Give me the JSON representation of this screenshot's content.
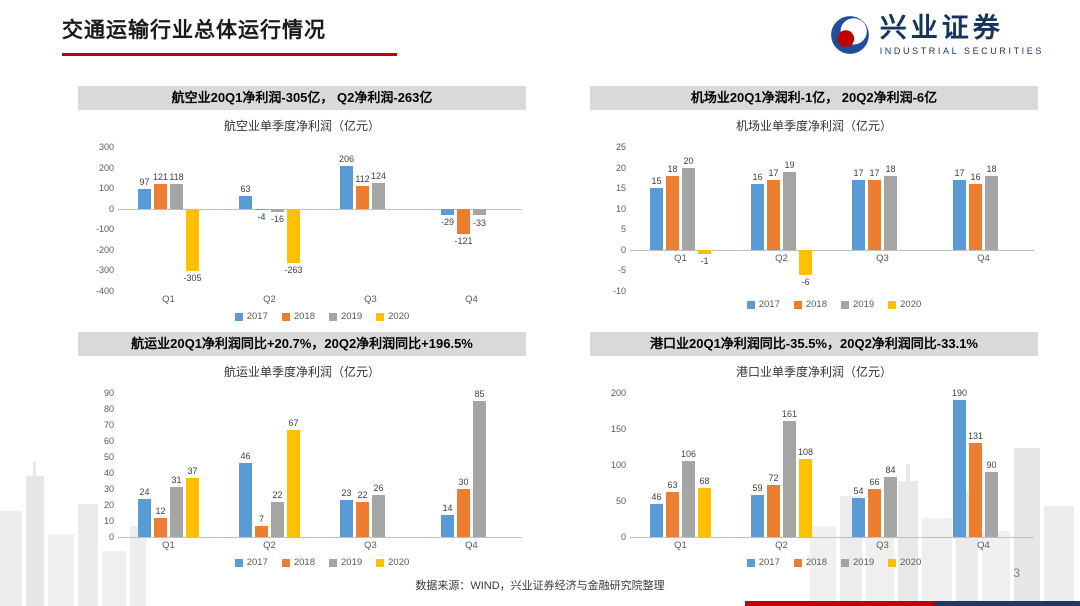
{
  "slide": {
    "title": "交通运输行业总体运行情况",
    "page_number": "3",
    "source_note": "数据来源：WIND，兴业证券经济与金融研究院整理",
    "logo": {
      "name": "兴业证券",
      "subtitle": "INDUSTRIAL SECURITIES"
    }
  },
  "panels": [
    {
      "header": "航空业20Q1净利润-305亿， Q2净利润-263亿"
    },
    {
      "header": "机场业20Q1净润利-1亿， 20Q2净利润-6亿"
    },
    {
      "header": "航运业20Q1净利润同比+20.7%，20Q2净利润同比+196.5%"
    },
    {
      "header": "港口业20Q1净利润同比-35.5%，20Q2净利润同比-33.1%"
    }
  ],
  "colors": {
    "accent_red": "#C00000",
    "footer_navy": "#1F3864",
    "panel_header_bg": "#D9D9D9",
    "series": {
      "2017": "#5B9BD5",
      "2018": "#ED7D31",
      "2019": "#A5A5A5",
      "2020": "#FFC000"
    }
  },
  "chart_data": [
    {
      "type": "bar",
      "title": "航空业单季度净利润（亿元）",
      "categories": [
        "Q1",
        "Q2",
        "Q3",
        "Q4"
      ],
      "series": [
        {
          "name": "2017",
          "values": [
            97,
            63,
            206,
            -29
          ]
        },
        {
          "name": "2018",
          "values": [
            121,
            -4,
            112,
            -121
          ]
        },
        {
          "name": "2019",
          "values": [
            118,
            -16,
            124,
            -33
          ]
        },
        {
          "name": "2020",
          "values": [
            -305,
            -263,
            null,
            null
          ]
        }
      ],
      "ylim": [
        -400,
        300
      ],
      "ytick": 100,
      "cat_pos": "bottom",
      "grid": false,
      "legend_position": "bottom"
    },
    {
      "type": "bar",
      "title": "机场业单季度净利润（亿元）",
      "categories": [
        "Q1",
        "Q2",
        "Q3",
        "Q4"
      ],
      "series": [
        {
          "name": "2017",
          "values": [
            15,
            16,
            17,
            17
          ]
        },
        {
          "name": "2018",
          "values": [
            18,
            17,
            17,
            16
          ]
        },
        {
          "name": "2019",
          "values": [
            20,
            19,
            18,
            18
          ]
        },
        {
          "name": "2020",
          "values": [
            -1,
            -6,
            null,
            null
          ]
        }
      ],
      "ylim": [
        -10,
        25
      ],
      "ytick": 5,
      "cat_pos": "axis",
      "grid": false,
      "legend_position": "bottom"
    },
    {
      "type": "bar",
      "title": "航运业单季度净利润（亿元）",
      "categories": [
        "Q1",
        "Q2",
        "Q3",
        "Q4"
      ],
      "series": [
        {
          "name": "2017",
          "values": [
            24,
            46,
            23,
            14
          ]
        },
        {
          "name": "2018",
          "values": [
            12,
            7,
            22,
            30
          ]
        },
        {
          "name": "2019",
          "values": [
            31,
            22,
            26,
            85
          ]
        },
        {
          "name": "2020",
          "values": [
            37,
            67,
            null,
            null
          ]
        }
      ],
      "ylim": [
        0,
        90
      ],
      "ytick": 10,
      "cat_pos": "bottom",
      "grid": false,
      "legend_position": "bottom"
    },
    {
      "type": "bar",
      "title": "港口业单季度净利润（亿元）",
      "categories": [
        "Q1",
        "Q2",
        "Q3",
        "Q4"
      ],
      "series": [
        {
          "name": "2017",
          "values": [
            46,
            59,
            54,
            190
          ]
        },
        {
          "name": "2018",
          "values": [
            63,
            72,
            66,
            131
          ]
        },
        {
          "name": "2019",
          "values": [
            106,
            161,
            84,
            90
          ]
        },
        {
          "name": "2020",
          "values": [
            68,
            108,
            null,
            null
          ]
        }
      ],
      "ylim": [
        0,
        200
      ],
      "ytick": 50,
      "cat_pos": "bottom",
      "grid": false,
      "legend_position": "bottom"
    }
  ]
}
